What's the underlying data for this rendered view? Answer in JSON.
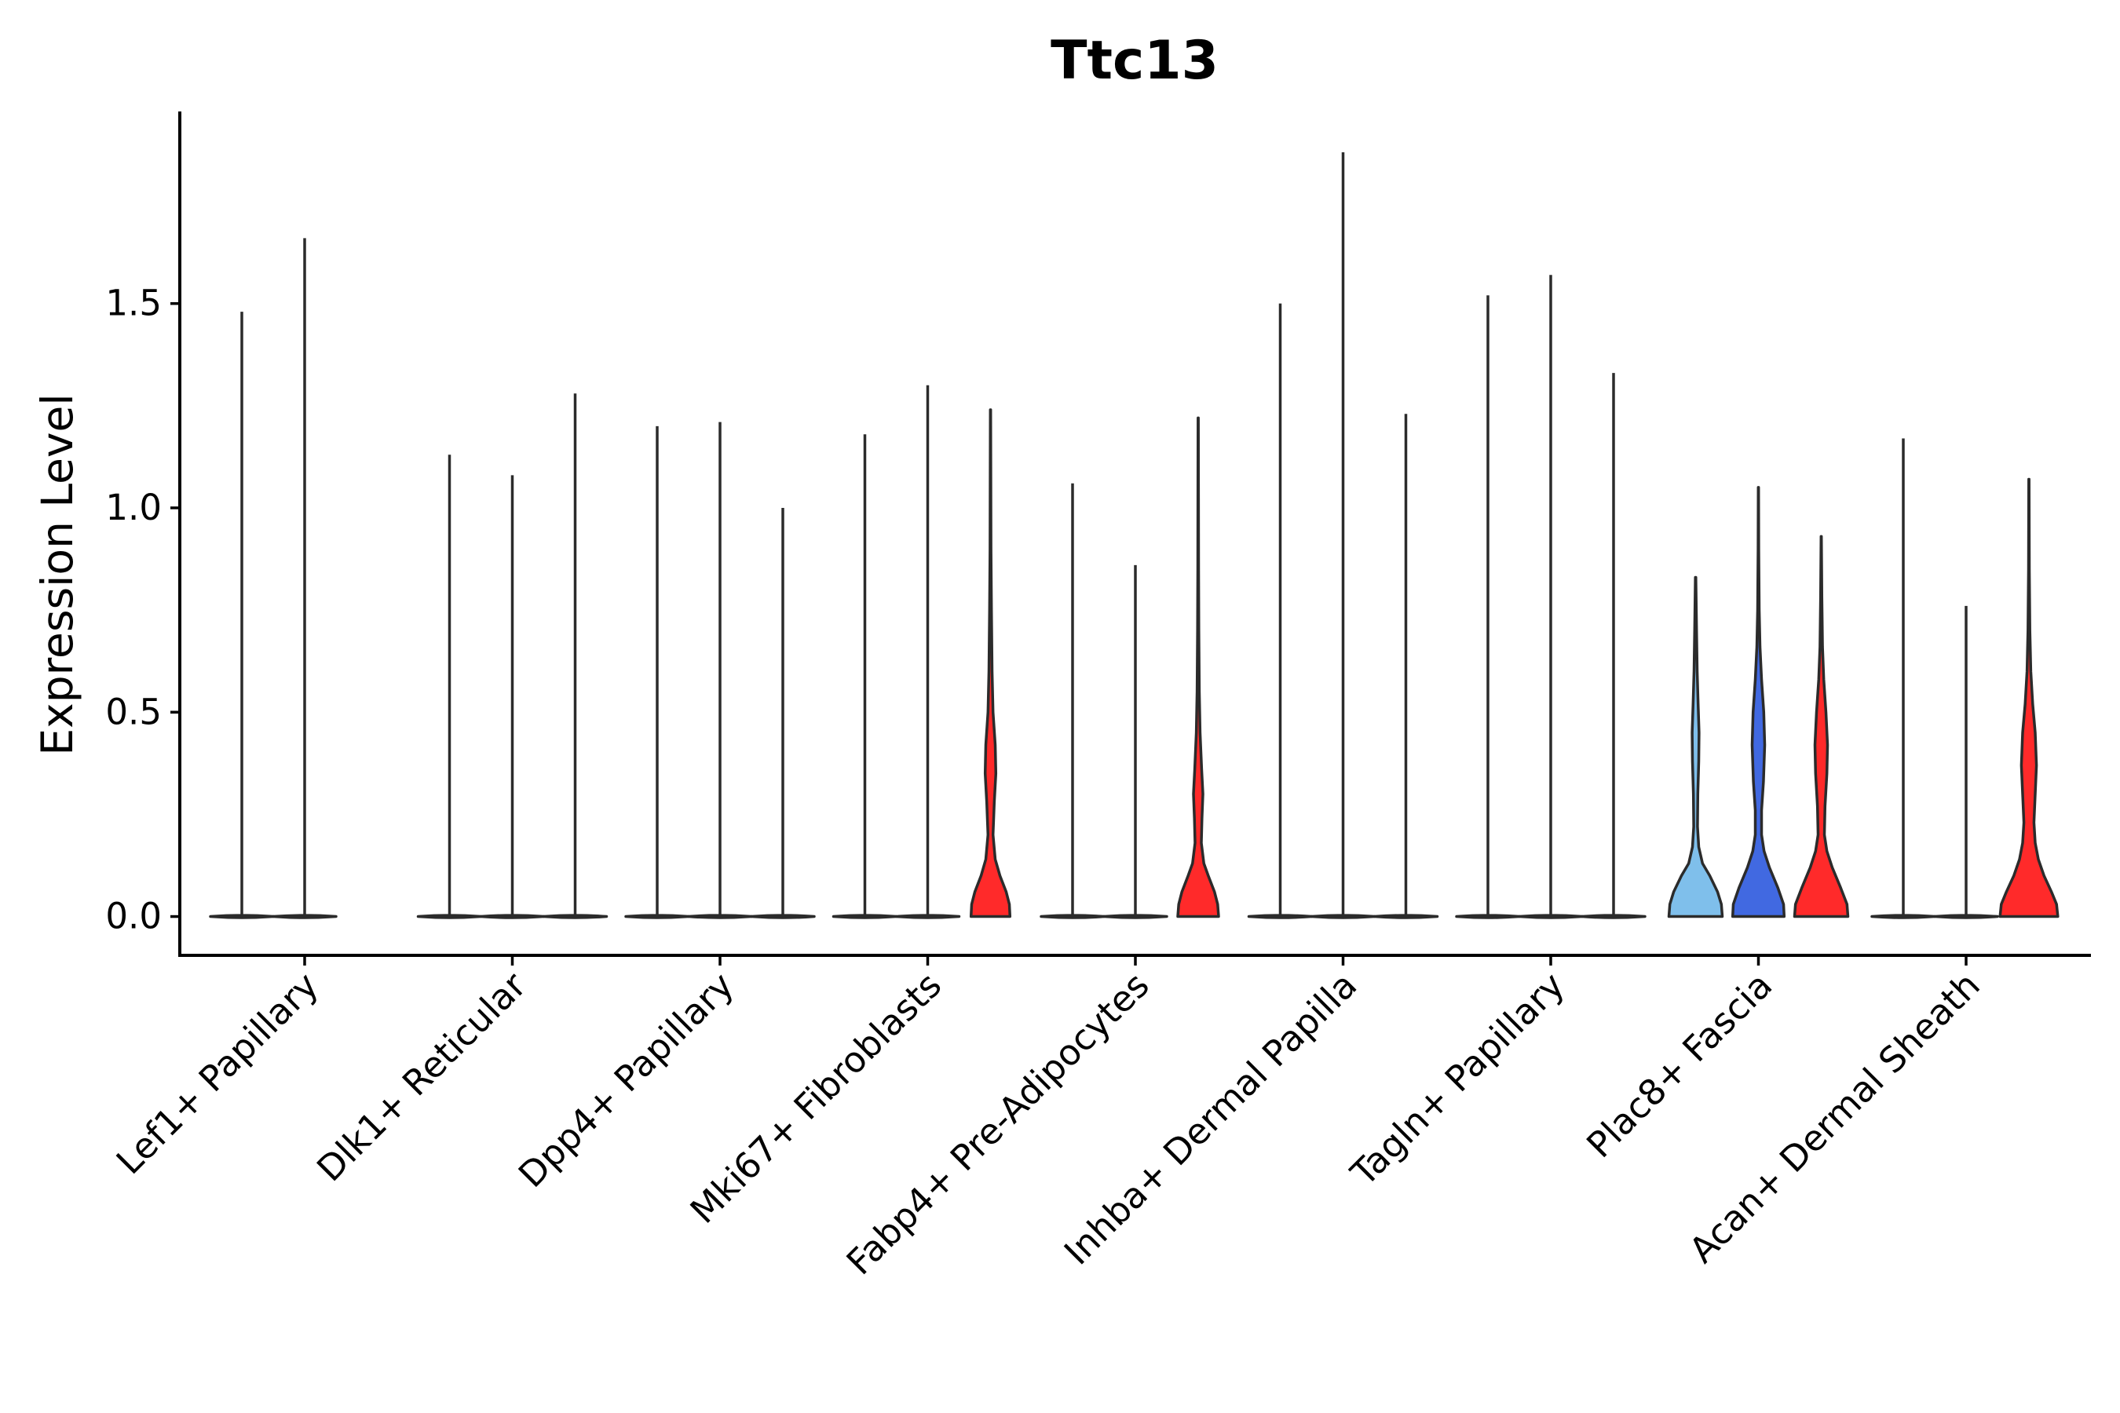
{
  "chart_data": {
    "type": "violin",
    "title": "Ttc13",
    "xlabel": "",
    "ylabel": "Expression Level",
    "ylim": [
      -0.095,
      1.97
    ],
    "yticks": [
      0.0,
      0.5,
      1.0,
      1.5
    ],
    "ytick_labels": [
      "0.0",
      "0.5",
      "1.0",
      "1.5"
    ],
    "categories": [
      "Lef1+ Papillary",
      "Dlk1+ Reticular",
      "Dpp4+ Papillary",
      "Mki67+ Fibroblasts",
      "Fabp4+ Pre-Adipocytes",
      "Inhba+ Dermal Papilla",
      "Tagln+ Papillary",
      "Plac8+ Fascia",
      "Acan+ Dermal Sheath"
    ],
    "series_names": [
      "split-1",
      "split-2",
      "split-3"
    ],
    "series_colors": [
      "#7fbfeb",
      "#4169e1",
      "#ff2a2a"
    ],
    "violins": [
      {
        "category": 0,
        "slot": 0,
        "max": 1.48,
        "filled": false
      },
      {
        "category": 0,
        "slot": 1,
        "max": 1.66,
        "filled": false
      },
      {
        "category": 1,
        "slot": 0,
        "max": 1.13,
        "filled": false
      },
      {
        "category": 1,
        "slot": 1,
        "max": 1.08,
        "filled": false
      },
      {
        "category": 1,
        "slot": 2,
        "max": 1.28,
        "filled": false
      },
      {
        "category": 2,
        "slot": 0,
        "max": 1.2,
        "filled": false
      },
      {
        "category": 2,
        "slot": 1,
        "max": 1.21,
        "filled": false
      },
      {
        "category": 2,
        "slot": 2,
        "max": 1.0,
        "filled": false
      },
      {
        "category": 3,
        "slot": 0,
        "max": 1.18,
        "filled": false
      },
      {
        "category": 3,
        "slot": 1,
        "max": 1.3,
        "filled": false
      },
      {
        "category": 3,
        "slot": 2,
        "max": 1.24,
        "filled": true,
        "profile": [
          [
            0,
            0.62
          ],
          [
            0.03,
            0.6
          ],
          [
            0.06,
            0.5
          ],
          [
            0.1,
            0.3
          ],
          [
            0.14,
            0.15
          ],
          [
            0.2,
            0.08
          ],
          [
            0.28,
            0.12
          ],
          [
            0.35,
            0.17
          ],
          [
            0.42,
            0.15
          ],
          [
            0.5,
            0.08
          ],
          [
            0.6,
            0.05
          ],
          [
            0.75,
            0.03
          ],
          [
            0.9,
            0.015
          ],
          [
            1.24,
            0.005
          ]
        ]
      },
      {
        "category": 4,
        "slot": 0,
        "max": 1.06,
        "filled": false
      },
      {
        "category": 4,
        "slot": 1,
        "max": 0.86,
        "filled": false
      },
      {
        "category": 4,
        "slot": 2,
        "max": 1.22,
        "filled": true,
        "profile": [
          [
            0,
            0.65
          ],
          [
            0.03,
            0.62
          ],
          [
            0.06,
            0.52
          ],
          [
            0.1,
            0.32
          ],
          [
            0.13,
            0.18
          ],
          [
            0.18,
            0.1
          ],
          [
            0.24,
            0.12
          ],
          [
            0.3,
            0.15
          ],
          [
            0.36,
            0.11
          ],
          [
            0.45,
            0.06
          ],
          [
            0.55,
            0.035
          ],
          [
            0.7,
            0.02
          ],
          [
            0.85,
            0.012
          ],
          [
            1.22,
            0.004
          ]
        ]
      },
      {
        "category": 5,
        "slot": 0,
        "max": 1.5,
        "filled": false
      },
      {
        "category": 5,
        "slot": 1,
        "max": 1.87,
        "filled": false
      },
      {
        "category": 5,
        "slot": 2,
        "max": 1.23,
        "filled": false
      },
      {
        "category": 6,
        "slot": 0,
        "max": 1.52,
        "filled": false
      },
      {
        "category": 6,
        "slot": 1,
        "max": 1.57,
        "filled": false
      },
      {
        "category": 6,
        "slot": 2,
        "max": 1.33,
        "filled": false
      },
      {
        "category": 7,
        "slot": 0,
        "max": 0.83,
        "filled": true,
        "profile": [
          [
            0,
            0.85
          ],
          [
            0.03,
            0.82
          ],
          [
            0.06,
            0.7
          ],
          [
            0.1,
            0.45
          ],
          [
            0.13,
            0.22
          ],
          [
            0.17,
            0.1
          ],
          [
            0.22,
            0.06
          ],
          [
            0.3,
            0.07
          ],
          [
            0.38,
            0.1
          ],
          [
            0.45,
            0.11
          ],
          [
            0.52,
            0.08
          ],
          [
            0.6,
            0.05
          ],
          [
            0.7,
            0.03
          ],
          [
            0.83,
            0.008
          ]
        ]
      },
      {
        "category": 7,
        "slot": 1,
        "max": 1.05,
        "filled": true,
        "profile": [
          [
            0,
            0.82
          ],
          [
            0.03,
            0.8
          ],
          [
            0.07,
            0.62
          ],
          [
            0.12,
            0.35
          ],
          [
            0.16,
            0.18
          ],
          [
            0.2,
            0.1
          ],
          [
            0.26,
            0.1
          ],
          [
            0.33,
            0.16
          ],
          [
            0.42,
            0.2
          ],
          [
            0.5,
            0.17
          ],
          [
            0.58,
            0.1
          ],
          [
            0.66,
            0.05
          ],
          [
            0.75,
            0.025
          ],
          [
            0.9,
            0.01
          ],
          [
            1.05,
            0.004
          ]
        ]
      },
      {
        "category": 7,
        "slot": 2,
        "max": 0.93,
        "filled": true,
        "profile": [
          [
            0,
            0.85
          ],
          [
            0.03,
            0.82
          ],
          [
            0.07,
            0.62
          ],
          [
            0.12,
            0.35
          ],
          [
            0.16,
            0.18
          ],
          [
            0.2,
            0.1
          ],
          [
            0.27,
            0.12
          ],
          [
            0.35,
            0.18
          ],
          [
            0.42,
            0.2
          ],
          [
            0.5,
            0.15
          ],
          [
            0.58,
            0.08
          ],
          [
            0.66,
            0.04
          ],
          [
            0.78,
            0.02
          ],
          [
            0.93,
            0.005
          ]
        ]
      },
      {
        "category": 8,
        "slot": 0,
        "max": 1.17,
        "filled": false
      },
      {
        "category": 8,
        "slot": 1,
        "max": 0.76,
        "filled": false
      },
      {
        "category": 8,
        "slot": 2,
        "max": 1.07,
        "filled": true,
        "profile": [
          [
            0,
            0.92
          ],
          [
            0.03,
            0.88
          ],
          [
            0.06,
            0.72
          ],
          [
            0.1,
            0.48
          ],
          [
            0.14,
            0.3
          ],
          [
            0.18,
            0.2
          ],
          [
            0.23,
            0.16
          ],
          [
            0.3,
            0.2
          ],
          [
            0.37,
            0.24
          ],
          [
            0.45,
            0.2
          ],
          [
            0.52,
            0.12
          ],
          [
            0.6,
            0.06
          ],
          [
            0.7,
            0.03
          ],
          [
            0.85,
            0.012
          ],
          [
            1.07,
            0.004
          ]
        ]
      }
    ]
  }
}
